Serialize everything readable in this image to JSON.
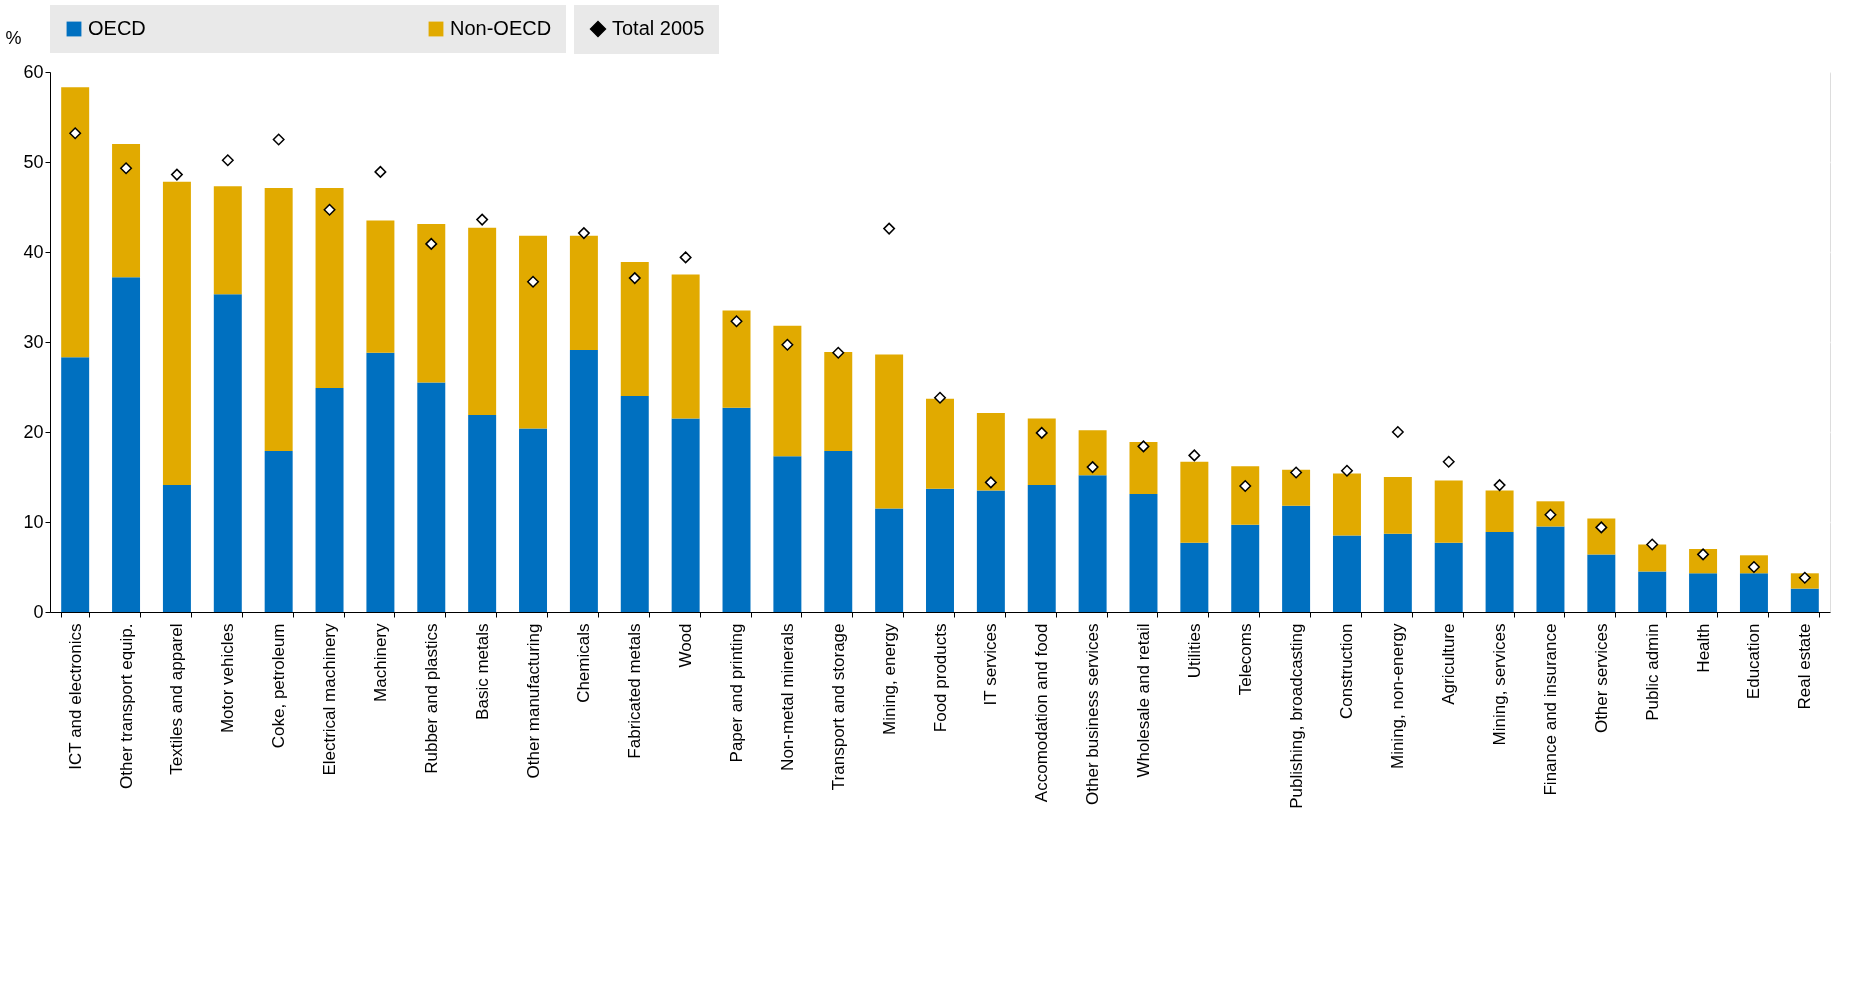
{
  "chart_data": {
    "type": "bar",
    "stacked": true,
    "ylabel": "%",
    "ylim": [
      0,
      60
    ],
    "yticks": [
      0,
      10,
      20,
      30,
      40,
      50,
      60
    ],
    "grid": true,
    "legend": "top",
    "categories": [
      "ICT and electronics",
      "Other transport equip.",
      "Textiles and apparel",
      "Motor vehicles",
      "Coke, petroleum",
      "Electrical machinery",
      "Machinery",
      "Rubber and plastics",
      "Basic metals",
      "Other manufacturing",
      "Chemicals",
      "Fabricated metals",
      "Wood",
      "Paper and printing",
      "Non-metal minerals",
      "Transport and storage",
      "Mining, energy",
      "Food products",
      "IT services",
      "Accomodation and food",
      "Other business services",
      "Wholesale and retail",
      "Utilities",
      "Telecoms",
      "Publishing, broadcasting",
      "Construction",
      "Mining, non-energy",
      "Agriculture",
      "Mining, services",
      "Finance and insurance",
      "Other services",
      "Public admin",
      "Health",
      "Education",
      "Real estate"
    ],
    "series": [
      {
        "name": "OECD",
        "color": "#0070c0",
        "values": [
          28.3,
          37.2,
          14.1,
          35.3,
          17.9,
          24.9,
          28.8,
          25.5,
          21.9,
          20.4,
          29.1,
          24.0,
          21.5,
          22.7,
          17.3,
          17.9,
          11.5,
          13.7,
          13.5,
          14.1,
          15.2,
          13.1,
          7.7,
          9.7,
          11.8,
          8.5,
          8.7,
          7.7,
          8.9,
          9.5,
          6.4,
          4.5,
          4.3,
          4.3,
          2.6
        ]
      },
      {
        "name": "Non-OECD",
        "color": "#e1aa00",
        "values": [
          30.0,
          14.8,
          33.7,
          12.0,
          29.2,
          22.2,
          14.7,
          17.6,
          20.8,
          21.4,
          12.7,
          14.9,
          16.0,
          10.8,
          14.5,
          11.0,
          17.1,
          10.0,
          8.6,
          7.4,
          5.0,
          5.8,
          9.0,
          6.5,
          4.0,
          6.9,
          6.3,
          6.9,
          4.6,
          2.8,
          4.0,
          3.0,
          2.7,
          2.0,
          1.7
        ]
      },
      {
        "name": "Total 2005",
        "type": "scatter",
        "marker": "diamond",
        "color": "#ffffff",
        "values": [
          53.2,
          49.3,
          48.6,
          50.2,
          52.5,
          44.7,
          48.9,
          40.9,
          43.6,
          36.7,
          42.1,
          37.1,
          39.4,
          32.3,
          29.7,
          28.8,
          42.6,
          23.8,
          14.4,
          19.9,
          16.1,
          18.4,
          17.4,
          14.0,
          15.5,
          15.7,
          20.0,
          16.7,
          14.1,
          10.8,
          9.4,
          7.5,
          6.4,
          5.0,
          3.8
        ]
      }
    ]
  }
}
